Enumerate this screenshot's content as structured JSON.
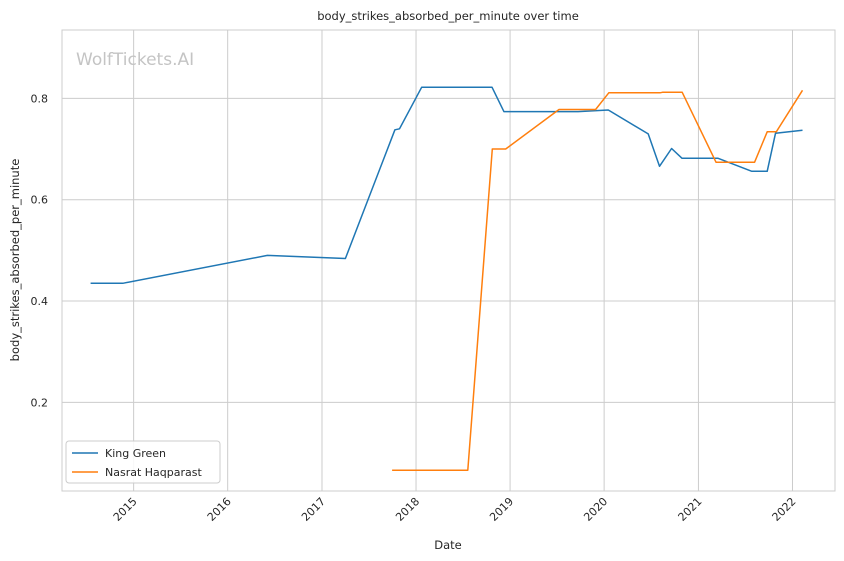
{
  "chart_data": {
    "type": "line",
    "title": "body_strikes_absorbed_per_minute over time",
    "xlabel": "Date",
    "ylabel": "body_strikes_absorbed_per_minute",
    "watermark": "WolfTickets.AI",
    "x_ticks": [
      "2015",
      "2016",
      "2017",
      "2018",
      "2019",
      "2020",
      "2021",
      "2022"
    ],
    "y_ticks": [
      "0.2",
      "0.4",
      "0.6",
      "0.8"
    ],
    "xlim": [
      "2014-03-29",
      "2022-06-15"
    ],
    "ylim": [
      0.025,
      0.935
    ],
    "grid": true,
    "legend_position": "lower-left",
    "series": [
      {
        "name": "King Green",
        "color": "#1f77b4",
        "points": [
          [
            "2014-07-18",
            0.435
          ],
          [
            "2014-11-20",
            0.435
          ],
          [
            "2016-06-03",
            0.49
          ],
          [
            "2017-04-02",
            0.484
          ],
          [
            "2017-10-11",
            0.738
          ],
          [
            "2017-10-29",
            0.74
          ],
          [
            "2018-01-23",
            0.822
          ],
          [
            "2018-10-23",
            0.822
          ],
          [
            "2018-12-08",
            0.774
          ],
          [
            "2019-09-22",
            0.774
          ],
          [
            "2020-01-17",
            0.777
          ],
          [
            "2020-06-20",
            0.73
          ],
          [
            "2020-08-03",
            0.666
          ],
          [
            "2020-09-19",
            0.701
          ],
          [
            "2020-10-29",
            0.682
          ],
          [
            "2021-03-17",
            0.682
          ],
          [
            "2021-07-27",
            0.656
          ],
          [
            "2021-09-25",
            0.656
          ],
          [
            "2021-10-27",
            0.731
          ],
          [
            "2022-02-09",
            0.737
          ]
        ]
      },
      {
        "name": "Nasrat Haqparast",
        "color": "#ff7f0e",
        "points": [
          [
            "2017-09-30",
            0.066
          ],
          [
            "2018-07-21",
            0.066
          ],
          [
            "2018-10-24",
            0.7
          ],
          [
            "2018-12-15",
            0.7
          ],
          [
            "2019-07-10",
            0.778
          ],
          [
            "2019-11-29",
            0.778
          ],
          [
            "2020-01-19",
            0.811
          ],
          [
            "2020-08-05",
            0.811
          ],
          [
            "2020-08-14",
            0.812
          ],
          [
            "2020-10-30",
            0.812
          ],
          [
            "2021-03-10",
            0.674
          ],
          [
            "2021-08-07",
            0.674
          ],
          [
            "2021-09-25",
            0.734
          ],
          [
            "2021-10-30",
            0.734
          ],
          [
            "2022-02-09",
            0.816
          ]
        ]
      }
    ]
  }
}
